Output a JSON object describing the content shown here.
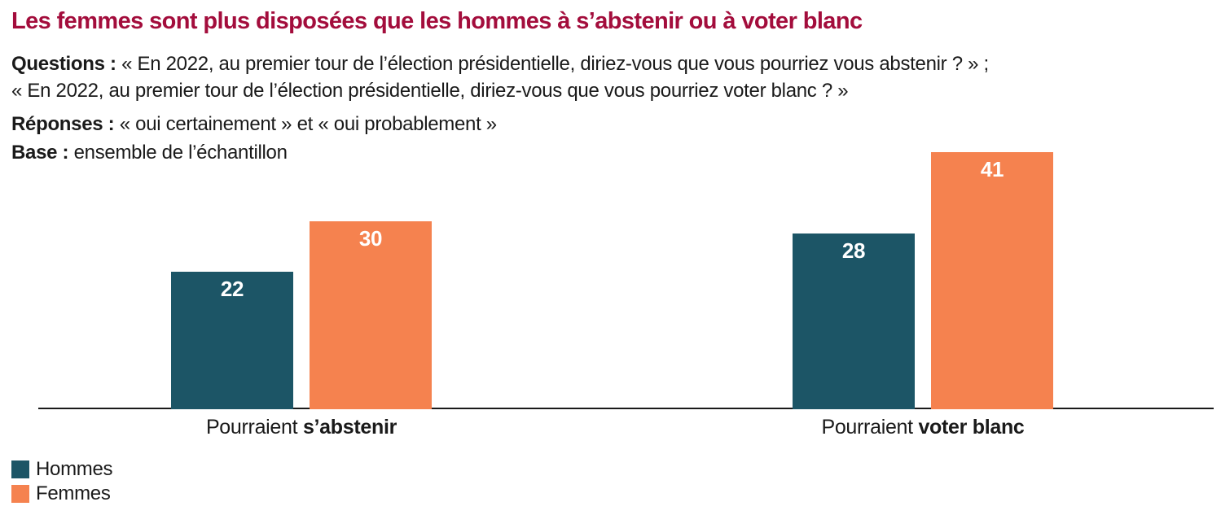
{
  "header": {
    "title": "Les femmes sont plus disposées que les hommes à s’abstenir ou à voter blanc",
    "questions_label": "Questions :",
    "question_1": "« En 2022, au premier tour de l’élection présidentielle, diriez-vous que vous pourriez vous abstenir ? » ;",
    "question_2": "« En 2022, au premier tour de l’élection présidentielle, diriez-vous que vous pourriez voter blanc ? »",
    "responses_label": "Réponses :",
    "responses_text": "« oui certainement » et « oui probablement »",
    "base_label": "Base :",
    "base_text": "ensemble de l’échantillon"
  },
  "colors": {
    "title": "#a30d3c",
    "axis": "#1a1a1a",
    "bar_value_text": "#ffffff"
  },
  "chart_data": {
    "type": "bar",
    "categories": [
      {
        "prefix": "Pourraient ",
        "emphasis": "s’abstenir"
      },
      {
        "prefix": "Pourraient ",
        "emphasis": "voter blanc"
      }
    ],
    "series": [
      {
        "name": "Hommes",
        "color": "#1c5566",
        "values": [
          22,
          28
        ]
      },
      {
        "name": "Femmes",
        "color": "#f5824f",
        "values": [
          30,
          41
        ]
      }
    ],
    "ylim": [
      0,
      45
    ],
    "grid": false,
    "value_labels": "inside-top",
    "legend_position": "bottom-left"
  }
}
